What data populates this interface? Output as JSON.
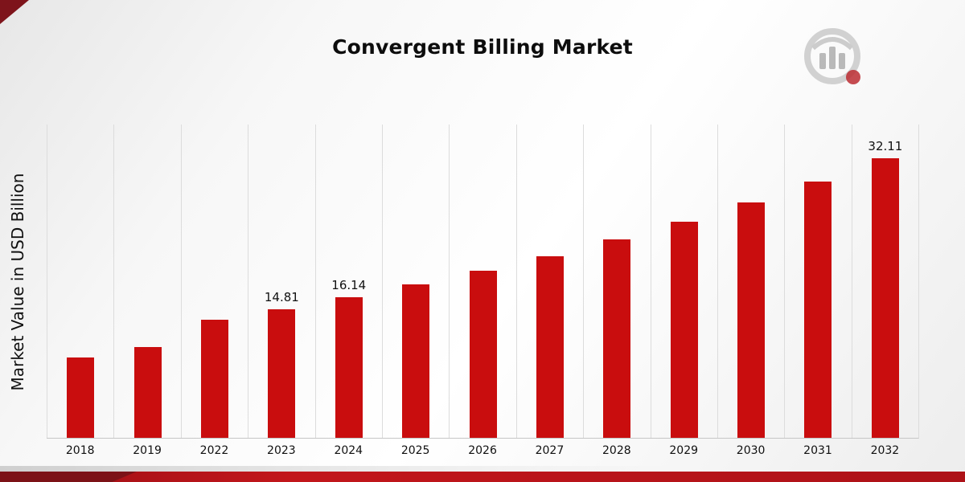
{
  "colors": {
    "bar": "#c90d0e",
    "accent_dark": "#7e141b",
    "bottom_strip": "#b81316",
    "gridline": "#dcdcdc"
  },
  "chart_data": {
    "type": "bar",
    "title": "Convergent Billing Market",
    "ylabel": "Market Value in USD Billion",
    "xlabel": "",
    "bar_color": "#c90d0e",
    "ylim": [
      0,
      36
    ],
    "grid": "vertical-only",
    "legend": "none",
    "categories": [
      "2018",
      "2019",
      "2022",
      "2023",
      "2024",
      "2025",
      "2026",
      "2027",
      "2028",
      "2029",
      "2030",
      "2031",
      "2032"
    ],
    "values": [
      9.2,
      10.4,
      13.55,
      14.81,
      16.14,
      17.59,
      19.17,
      20.89,
      22.77,
      24.81,
      27.04,
      29.47,
      32.11
    ],
    "data_labels": {
      "2023": "14.81",
      "2024": "16.14",
      "2032": "32.11"
    }
  }
}
